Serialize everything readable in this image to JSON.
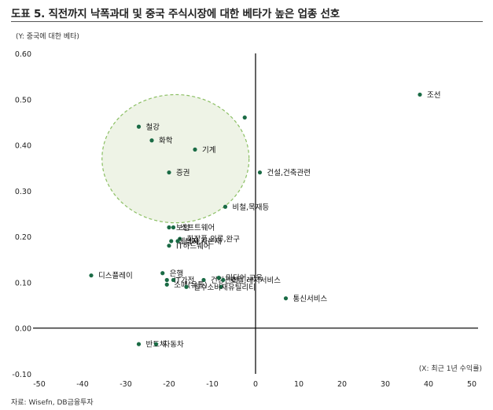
{
  "header": {
    "title": "도표 5. 직전까지 낙폭과대 및 중국 주식시장에 대한 베타가 높은 업종 선호",
    "source": "자료: Wisefn, DB금융투자"
  },
  "chart_data": {
    "type": "scatter",
    "title": "도표 5. 직전까지 낙폭과대 및 중국 주식시장에 대한 베타가 높은 업종 선호",
    "ylabel": "(Y: 중국에 대한 베타)",
    "xlabel": "(X: 최근 1년 수익률)",
    "xlim": [
      -50,
      50
    ],
    "ylim": [
      -0.1,
      0.6
    ],
    "xticks": [
      "-50",
      "-40",
      "-30",
      "-20",
      "-10",
      "0",
      "10",
      "20",
      "30",
      "40",
      "50"
    ],
    "yticks": [
      "-0.10",
      "0.00",
      "0.10",
      "0.20",
      "0.30",
      "0.40",
      "0.50",
      "0.60"
    ],
    "grid": false,
    "colors": {
      "point": "#1a6b45",
      "highlight_fill": "#eef3e6",
      "highlight_stroke": "#8bbf63"
    },
    "highlight_circle": {
      "center_x": -18.5,
      "center_y": 0.37,
      "radius_x": 17,
      "radius_y": 0.14
    },
    "points": [
      {
        "label": "조선",
        "x": 38,
        "y": 0.51
      },
      {
        "label": "철강",
        "x": -27,
        "y": 0.44
      },
      {
        "label": "화학",
        "x": -24,
        "y": 0.41
      },
      {
        "label": "기계",
        "x": -14,
        "y": 0.39
      },
      {
        "label": "",
        "x": -2.5,
        "y": 0.46
      },
      {
        "label": "증권",
        "x": -20,
        "y": 0.34
      },
      {
        "label": "건설,건축관련",
        "x": 1,
        "y": 0.34
      },
      {
        "label": "비철,목재등",
        "x": -7,
        "y": 0.265
      },
      {
        "label": "보험",
        "x": -20,
        "y": 0.22
      },
      {
        "label": "소프트웨어",
        "x": -19,
        "y": 0.22
      },
      {
        "label": "화장품,의류,완구",
        "x": -17.5,
        "y": 0.195
      },
      {
        "label": "에너지",
        "x": -19.5,
        "y": 0.19
      },
      {
        "label": "상사,자본재",
        "x": -18,
        "y": 0.19
      },
      {
        "label": "IT하드웨어",
        "x": -20,
        "y": 0.18
      },
      {
        "label": "디스플레이",
        "x": -38,
        "y": 0.115
      },
      {
        "label": "은행",
        "x": -21.5,
        "y": 0.12
      },
      {
        "label": "IT가전",
        "x": -20.5,
        "y": 0.105
      },
      {
        "label": "",
        "x": -19,
        "y": 0.105
      },
      {
        "label": "건강관리",
        "x": -12,
        "y": 0.105
      },
      {
        "label": "미디어,교육",
        "x": -8.5,
        "y": 0.11
      },
      {
        "label": "호텔,레저서비스",
        "x": -7.5,
        "y": 0.105
      },
      {
        "label": "유틸리티",
        "x": -8,
        "y": 0.09
      },
      {
        "label": "소매(유통)",
        "x": -20.5,
        "y": 0.095
      },
      {
        "label": "필수소비재",
        "x": -16,
        "y": 0.09
      },
      {
        "label": "통신서비스",
        "x": 7,
        "y": 0.065
      },
      {
        "label": "반도체",
        "x": -27,
        "y": -0.035
      },
      {
        "label": "자동차",
        "x": -23,
        "y": -0.035
      }
    ]
  }
}
